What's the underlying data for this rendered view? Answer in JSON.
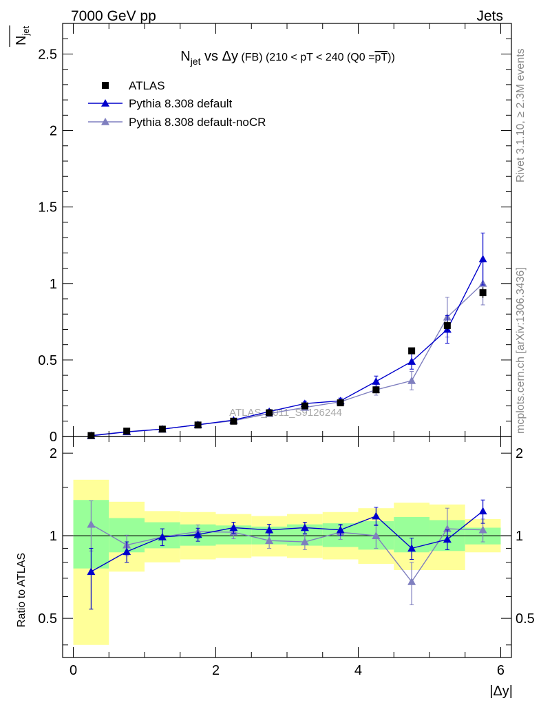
{
  "header": {
    "left": "7000 GeV pp",
    "right": "Jets"
  },
  "side_labels": {
    "rivet": "Rivet 3.1.10, ≥ 2.3M events",
    "mcplots": "mcplots.cern.ch [arXiv:1306.3436]"
  },
  "watermark": "ATLAS_2011_S9126244",
  "colors": {
    "atlas": "#000000",
    "pythia_default": "#0000cc",
    "pythia_nocr": "#7f7fbf",
    "band_inner": "#99ff99",
    "band_outer": "#ffff99"
  },
  "chart_data": [
    {
      "type": "scatter",
      "title_main": "N",
      "title_sub": "jet",
      "title_rest": " vs Δy",
      "title_small": " (FB)",
      "title_cond": " (210 < pT < 240 (Q0 =",
      "title_over": "pT",
      "title_end": "))",
      "ylabel_sub": "jet",
      "ylim": [
        0,
        2.7
      ],
      "yticks": [
        "0",
        "0.5",
        "1",
        "1.5",
        "2",
        "2.5"
      ],
      "xlim": [
        -0.15,
        6.15
      ],
      "x": [
        0.25,
        0.75,
        1.25,
        1.75,
        2.25,
        2.75,
        3.25,
        3.75,
        4.25,
        4.75,
        5.25,
        5.75
      ],
      "legend": [
        "ATLAS",
        "Pythia 8.308 default",
        "Pythia 8.308 default-noCR"
      ],
      "series": [
        {
          "name": "ATLAS",
          "values": [
            0.006,
            0.035,
            0.048,
            0.075,
            0.1,
            0.155,
            0.2,
            0.22,
            0.305,
            0.56,
            0.725,
            0.94
          ],
          "errors": [
            0.002,
            0.003,
            0.003,
            0.004,
            0.005,
            0.007,
            0.008,
            0.009,
            0.012,
            0.02,
            0.03,
            0.035
          ]
        },
        {
          "name": "Pythia 8.308 default",
          "values": [
            0.005,
            0.03,
            0.048,
            0.077,
            0.107,
            0.163,
            0.215,
            0.233,
            0.36,
            0.49,
            0.7,
            1.16
          ],
          "errors": [
            0.002,
            0.004,
            0.006,
            0.008,
            0.01,
            0.013,
            0.015,
            0.018,
            0.035,
            0.05,
            0.09,
            0.17
          ]
        },
        {
          "name": "Pythia 8.308 default-noCR",
          "values": [
            0.007,
            0.032,
            0.048,
            0.077,
            0.103,
            0.15,
            0.19,
            0.227,
            0.305,
            0.365,
            0.78,
            1.0
          ],
          "errors": [
            0.003,
            0.004,
            0.006,
            0.008,
            0.01,
            0.012,
            0.014,
            0.017,
            0.035,
            0.06,
            0.13,
            0.14
          ]
        }
      ]
    },
    {
      "type": "scatter",
      "ylabel": "Ratio to ATLAS",
      "xlabel": "|Δy|",
      "ylim": [
        0.36,
        2.3
      ],
      "yscale": "log",
      "yticks": [
        0.5,
        1,
        2
      ],
      "ytick_labels": [
        "0.5",
        "1",
        "2"
      ],
      "xlim": [
        -0.15,
        6.15
      ],
      "xticks": [
        "0",
        "2",
        "4",
        "6"
      ],
      "reference_line": 1,
      "x_edges": [
        0,
        0.5,
        1.0,
        1.5,
        2.0,
        2.5,
        3.0,
        3.5,
        4.0,
        4.5,
        5.0,
        5.5,
        6.0
      ],
      "band_inner": [
        [
          0.76,
          1.35
        ],
        [
          0.87,
          1.16
        ],
        [
          0.9,
          1.12
        ],
        [
          0.92,
          1.1
        ],
        [
          0.93,
          1.09
        ],
        [
          0.93,
          1.08
        ],
        [
          0.92,
          1.1
        ],
        [
          0.91,
          1.11
        ],
        [
          0.89,
          1.13
        ],
        [
          0.87,
          1.17
        ],
        [
          0.88,
          1.14
        ],
        [
          0.93,
          1.07
        ]
      ],
      "band_outer": [
        [
          0.4,
          1.6
        ],
        [
          0.74,
          1.33
        ],
        [
          0.8,
          1.23
        ],
        [
          0.82,
          1.22
        ],
        [
          0.83,
          1.2
        ],
        [
          0.84,
          1.18
        ],
        [
          0.83,
          1.2
        ],
        [
          0.82,
          1.22
        ],
        [
          0.79,
          1.26
        ],
        [
          0.75,
          1.32
        ],
        [
          0.75,
          1.3
        ],
        [
          0.87,
          1.15
        ]
      ],
      "x": [
        0.25,
        0.75,
        1.25,
        1.75,
        2.25,
        2.75,
        3.25,
        3.75,
        4.25,
        4.75,
        5.25,
        5.75
      ],
      "series": [
        {
          "name": "Pythia 8.308 default",
          "values": [
            0.74,
            0.875,
            0.99,
            1.01,
            1.07,
            1.05,
            1.07,
            1.05,
            1.18,
            0.9,
            0.97,
            1.23
          ],
          "err_low": [
            0.2,
            0.075,
            0.07,
            0.055,
            0.05,
            0.05,
            0.05,
            0.05,
            0.09,
            0.08,
            0.08,
            0.12
          ],
          "err_high": [
            0.16,
            0.075,
            0.07,
            0.055,
            0.05,
            0.05,
            0.05,
            0.05,
            0.09,
            0.08,
            0.08,
            0.12
          ]
        },
        {
          "name": "Pythia 8.308 default-noCR",
          "values": [
            1.1,
            0.925,
            0.99,
            1.035,
            1.03,
            0.96,
            0.95,
            1.03,
            1.0,
            0.68,
            1.06,
            1.05
          ],
          "err_low": [
            0.22,
            0.08,
            0.07,
            0.06,
            0.055,
            0.06,
            0.06,
            0.06,
            0.1,
            0.12,
            0.17,
            0.1
          ],
          "err_high": [
            0.24,
            0.08,
            0.07,
            0.06,
            0.055,
            0.06,
            0.06,
            0.06,
            0.1,
            0.12,
            0.2,
            0.1
          ]
        }
      ]
    }
  ]
}
